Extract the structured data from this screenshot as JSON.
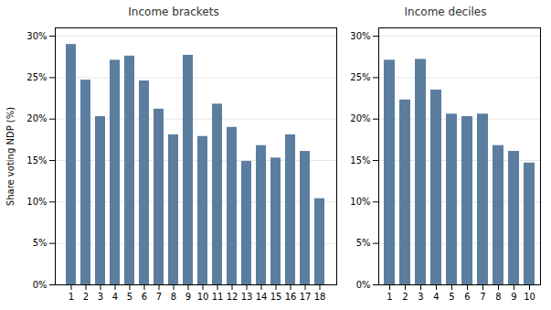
{
  "chart_data": [
    {
      "type": "bar",
      "title": "Income brackets",
      "ylabel": "Share voting NDP (%)",
      "categories": [
        "1",
        "2",
        "3",
        "4",
        "5",
        "6",
        "7",
        "8",
        "9",
        "10",
        "11",
        "12",
        "13",
        "14",
        "15",
        "16",
        "17",
        "18"
      ],
      "values": [
        29.0,
        24.7,
        20.3,
        27.1,
        27.6,
        24.6,
        21.2,
        18.1,
        27.7,
        17.9,
        21.8,
        19.0,
        14.9,
        16.8,
        15.3,
        18.1,
        16.1,
        10.4
      ],
      "color": "#5b7ea0",
      "ylim": [
        0,
        31
      ],
      "yticks": [
        {
          "value": 0,
          "label": "0%"
        },
        {
          "value": 5,
          "label": "5%"
        },
        {
          "value": 10,
          "label": "10%"
        },
        {
          "value": 15,
          "label": "15%"
        },
        {
          "value": 20,
          "label": "20%"
        },
        {
          "value": 25,
          "label": "25%"
        },
        {
          "value": 30,
          "label": "30%"
        }
      ],
      "grid": true
    },
    {
      "type": "bar",
      "title": "Income deciles",
      "categories": [
        "1",
        "2",
        "3",
        "4",
        "5",
        "6",
        "7",
        "8",
        "9",
        "10"
      ],
      "values": [
        27.1,
        22.3,
        27.2,
        23.5,
        20.6,
        20.3,
        20.6,
        16.8,
        16.1,
        14.7
      ],
      "color": "#5b7ea0",
      "ylim": [
        0,
        31
      ],
      "yticks": [
        {
          "value": 0,
          "label": "0%"
        },
        {
          "value": 5,
          "label": "5%"
        },
        {
          "value": 10,
          "label": "10%"
        },
        {
          "value": 15,
          "label": "15%"
        },
        {
          "value": 20,
          "label": "20%"
        },
        {
          "value": 25,
          "label": "25%"
        },
        {
          "value": 30,
          "label": "30%"
        }
      ],
      "grid": true
    }
  ]
}
